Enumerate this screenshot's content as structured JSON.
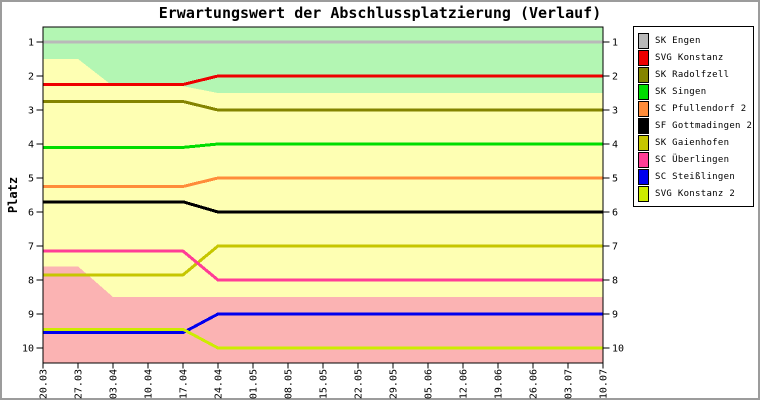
{
  "chart_data": {
    "type": "line",
    "title": "Erwartungswert der Abschlussplatzierung (Verlauf)",
    "ylabel": "Platz",
    "x_tick_labels": [
      "20.03",
      "27.03",
      "03.04",
      "10.04",
      "17.04",
      "24.04",
      "01.05",
      "08.05",
      "15.05",
      "22.05",
      "29.05",
      "05.06",
      "12.06",
      "19.06",
      "26.06",
      "03.07",
      "10.07"
    ],
    "y_ticks": [
      1,
      2,
      3,
      4,
      5,
      6,
      7,
      8,
      9,
      10
    ],
    "y_axis": {
      "min": 0.5,
      "max": 10.5,
      "inverted": true,
      "ticks_on_both_sides": true
    },
    "grid": false,
    "legend_position": "top-right",
    "series": [
      {
        "name": "SK Engen",
        "color": "#b9b9b9",
        "values": [
          1,
          1,
          1,
          1,
          1,
          1,
          1,
          1,
          1,
          1,
          1,
          1,
          1,
          1,
          1,
          1,
          1
        ]
      },
      {
        "name": "SVG Konstanz",
        "color": "#ee0000",
        "values": [
          2.25,
          2.25,
          2.25,
          2.25,
          2.25,
          2,
          2,
          2,
          2,
          2,
          2,
          2,
          2,
          2,
          2,
          2,
          2
        ]
      },
      {
        "name": "SK Radolfzell",
        "color": "#848400",
        "values": [
          2.75,
          2.75,
          2.75,
          2.75,
          2.75,
          3,
          3,
          3,
          3,
          3,
          3,
          3,
          3,
          3,
          3,
          3,
          3
        ]
      },
      {
        "name": "SK Singen",
        "color": "#00dd00",
        "values": [
          4.1,
          4.1,
          4.1,
          4.1,
          4.1,
          4,
          4,
          4,
          4,
          4,
          4,
          4,
          4,
          4,
          4,
          4,
          4
        ]
      },
      {
        "name": "SC Pfullendorf 2",
        "color": "#ff8c3a",
        "values": [
          5.25,
          5.25,
          5.25,
          5.25,
          5.25,
          5,
          5,
          5,
          5,
          5,
          5,
          5,
          5,
          5,
          5,
          5,
          5
        ]
      },
      {
        "name": "SF Gottmadingen 2",
        "color": "#000000",
        "values": [
          5.7,
          5.7,
          5.7,
          5.7,
          5.7,
          6,
          6,
          6,
          6,
          6,
          6,
          6,
          6,
          6,
          6,
          6,
          6
        ]
      },
      {
        "name": "SK Gaienhofen",
        "color": "#c6c600",
        "values": [
          7.85,
          7.85,
          7.85,
          7.85,
          7.85,
          7,
          7,
          7,
          7,
          7,
          7,
          7,
          7,
          7,
          7,
          7,
          7
        ]
      },
      {
        "name": "SC Überlingen",
        "color": "#ff3d96",
        "values": [
          7.15,
          7.15,
          7.15,
          7.15,
          7.15,
          8,
          8,
          8,
          8,
          8,
          8,
          8,
          8,
          8,
          8,
          8,
          8
        ]
      },
      {
        "name": "SC Steißlingen",
        "color": "#0000ee",
        "values": [
          9.55,
          9.55,
          9.55,
          9.55,
          9.55,
          9,
          9,
          9,
          9,
          9,
          9,
          9,
          9,
          9,
          9,
          9,
          9
        ]
      },
      {
        "name": "SVG Konstanz 2",
        "color": "#cdec00",
        "values": [
          9.45,
          9.45,
          9.45,
          9.45,
          9.45,
          10,
          10,
          10,
          10,
          10,
          10,
          10,
          10,
          10,
          10,
          10,
          10
        ]
      }
    ],
    "zones": {
      "top": {
        "name": "promotion-zone",
        "color": "#b3f6b3",
        "lower_boundary": [
          1.5,
          1.5,
          2.3,
          2.3,
          2.3,
          2.5,
          2.5,
          2.5,
          2.5,
          2.5,
          2.5,
          2.5,
          2.5,
          2.5,
          2.5,
          2.5,
          2.5
        ]
      },
      "middle": {
        "name": "midfield-zone",
        "color": "#feffb3"
      },
      "bottom": {
        "name": "relegation-zone",
        "color": "#fbb3b3",
        "upper_boundary": [
          7.6,
          7.6,
          8.5,
          8.5,
          8.5,
          8.5,
          8.5,
          8.5,
          8.5,
          8.5,
          8.5,
          8.5,
          8.5,
          8.5,
          8.5,
          8.5,
          8.5
        ]
      }
    }
  }
}
